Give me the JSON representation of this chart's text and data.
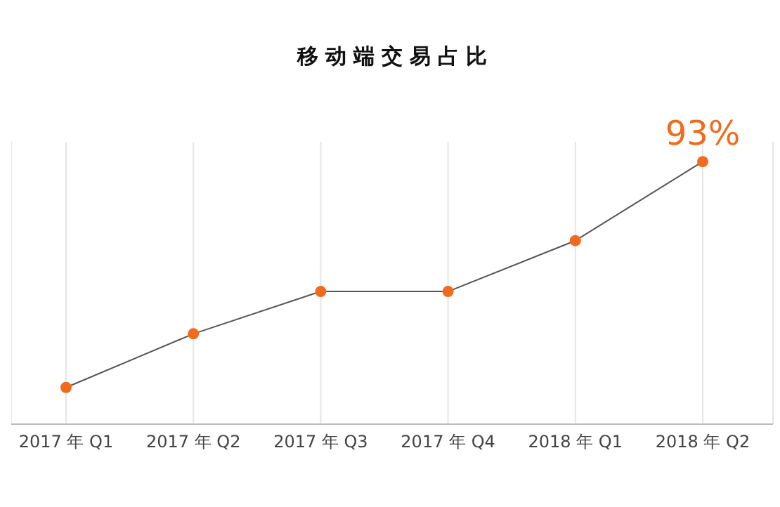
{
  "chart_data": {
    "type": "line",
    "title": "移动端交易占比",
    "categories": [
      "2017 年 Q1",
      "2017 年 Q2",
      "2017 年 Q3",
      "2017 年 Q4",
      "2018 年 Q1",
      "2018 年 Q2"
    ],
    "series": [
      {
        "color": "#555555",
        "values": [
          13,
          32,
          47,
          47,
          65,
          93
        ],
        "value_labels": [
          null,
          null,
          null,
          null,
          null,
          "93%"
        ]
      }
    ],
    "ylim": [
      0,
      100
    ],
    "tick_labels": "x",
    "grid": "x",
    "marker": "circle",
    "line_style": "solid",
    "legend": false
  }
}
